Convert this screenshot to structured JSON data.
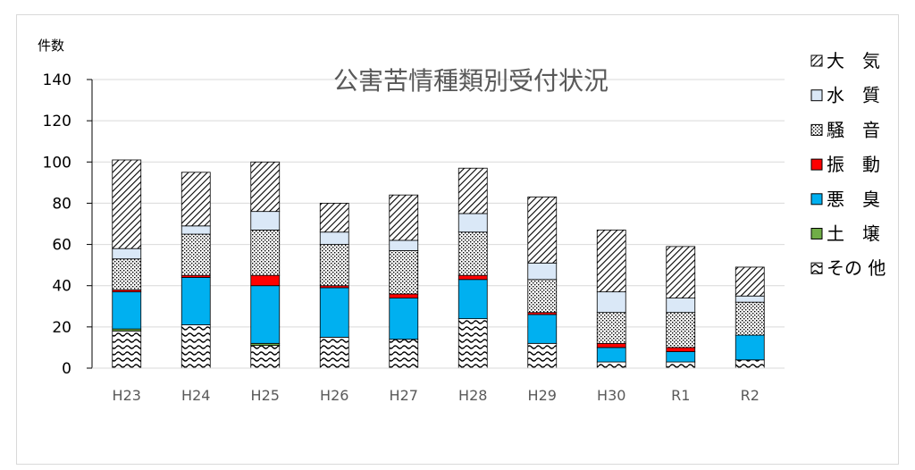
{
  "chart_data": {
    "type": "bar",
    "stacked": true,
    "title": "公害苦情種類別受付状況",
    "ylabel": "件数",
    "xlabel": "",
    "ylim": [
      0,
      140
    ],
    "yticks": [
      0,
      20,
      40,
      60,
      80,
      100,
      120,
      140
    ],
    "grid": true,
    "legend_position": "right",
    "categories": [
      "H23",
      "H24",
      "H25",
      "H26",
      "H27",
      "H28",
      "H29",
      "H30",
      "R1",
      "R2"
    ],
    "series": [
      {
        "name": "その 他",
        "pattern": "wave",
        "color": "#ffffff",
        "values": [
          18,
          21,
          11,
          15,
          14,
          24,
          12,
          3,
          3,
          4
        ]
      },
      {
        "name": "土　壌",
        "pattern": "solid",
        "color": "#70ad47",
        "values": [
          1,
          0,
          1,
          0,
          0,
          0,
          0,
          0,
          0,
          0
        ]
      },
      {
        "name": "悪　臭",
        "pattern": "solid",
        "color": "#00b0f0",
        "values": [
          18,
          23,
          28,
          24,
          20,
          19,
          14,
          7,
          5,
          12
        ]
      },
      {
        "name": "振　動",
        "pattern": "solid",
        "color": "#ff0000",
        "values": [
          1,
          1,
          5,
          1,
          2,
          2,
          1,
          2,
          2,
          0
        ]
      },
      {
        "name": "騒　音",
        "pattern": "dots",
        "color": "#ffffff",
        "values": [
          15,
          20,
          22,
          20,
          21,
          21,
          16,
          15,
          17,
          16
        ]
      },
      {
        "name": "水　質",
        "pattern": "solid",
        "color": "#dae8f7",
        "values": [
          5,
          4,
          9,
          6,
          5,
          9,
          8,
          10,
          7,
          3
        ]
      },
      {
        "name": "大　気",
        "pattern": "hatch",
        "color": "#ffffff",
        "values": [
          43,
          26,
          24,
          14,
          22,
          22,
          32,
          30,
          25,
          14
        ]
      }
    ],
    "legend_order": [
      "大　気",
      "水　質",
      "騒　音",
      "振　動",
      "悪　臭",
      "土　壌",
      "その 他"
    ]
  }
}
